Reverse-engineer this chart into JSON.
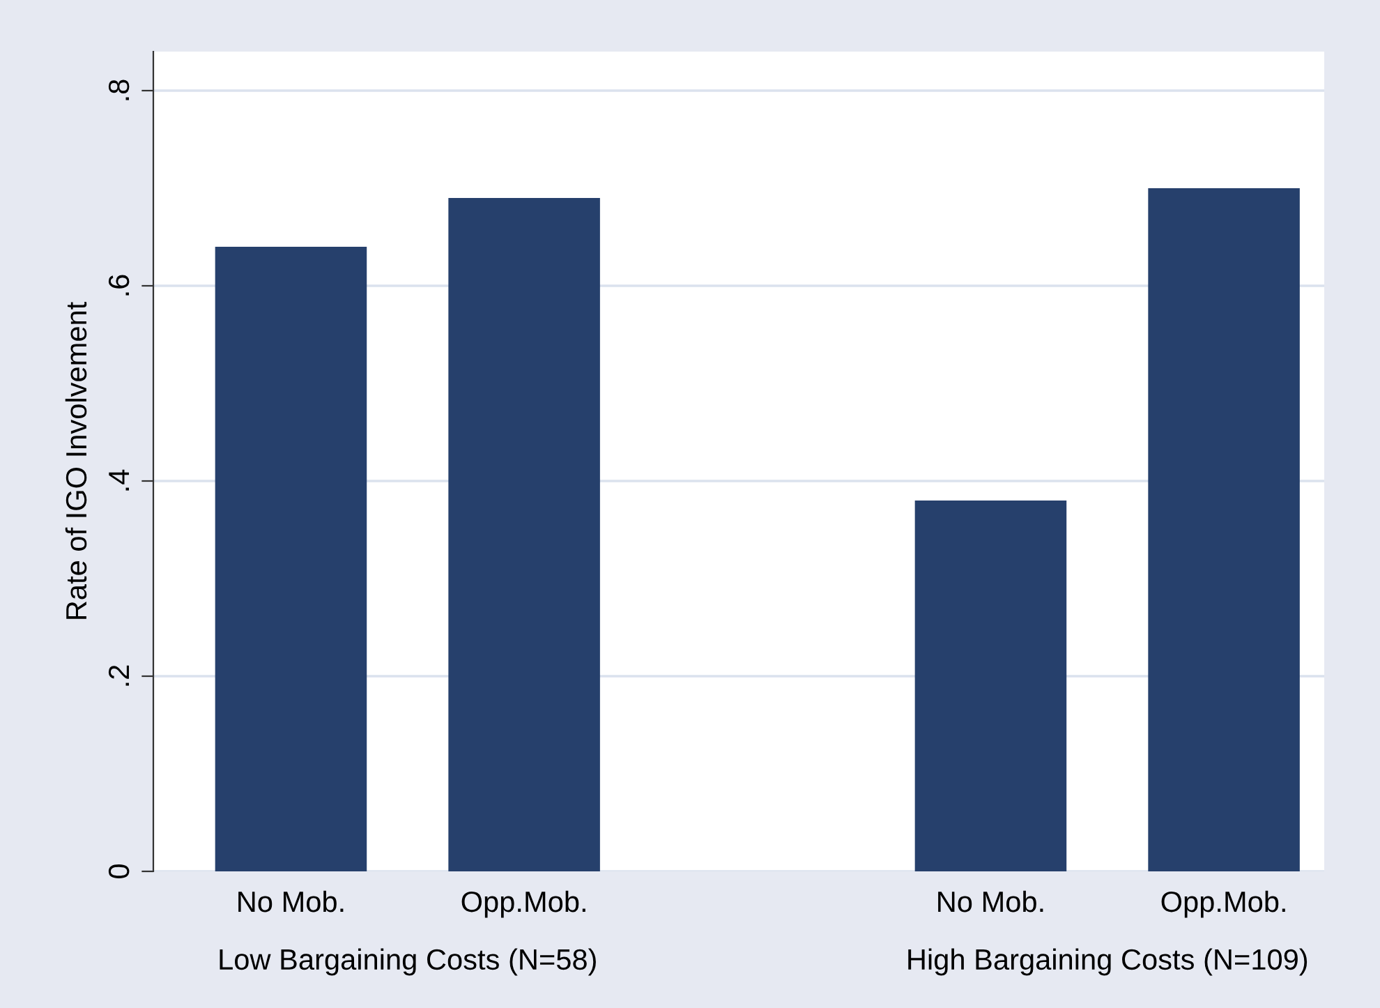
{
  "chart_data": {
    "type": "bar",
    "ylabel": "Rate of IGO Involvement",
    "categories": [
      "No Mob.",
      "Opp.Mob.",
      null,
      "No Mob.",
      "Opp.Mob."
    ],
    "values": [
      0.64,
      0.69,
      null,
      0.38,
      0.7
    ],
    "color": "#26406c",
    "ylim": [
      0,
      0.84
    ],
    "yticks": [
      0,
      {
        "value": 0.2,
        "label": ".2"
      },
      {
        "value": 0.4,
        "label": ".4"
      },
      {
        "value": 0.6,
        "label": ".6"
      },
      {
        "value": 0.8,
        "label": ".8"
      }
    ],
    "grid": "y",
    "annotations": [
      "Low Bargaining Costs (N=58)",
      "High Bargaining Costs (N=109)"
    ]
  }
}
